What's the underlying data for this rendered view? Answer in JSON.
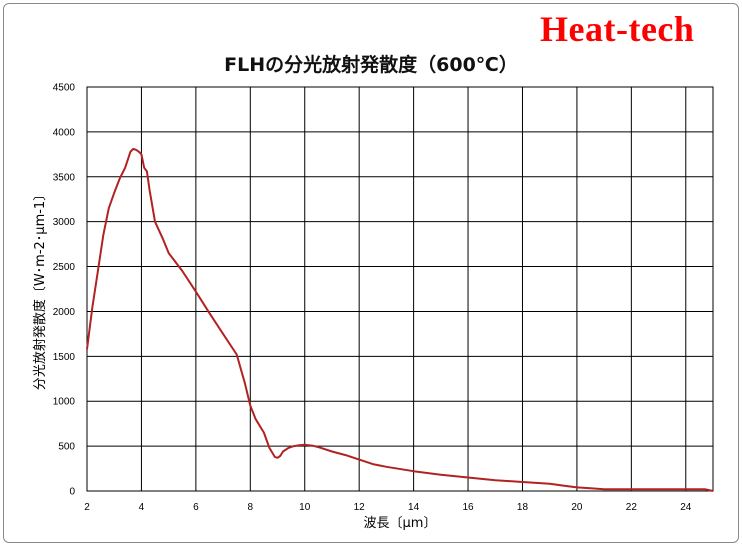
{
  "brand": "Heat-tech",
  "chart_data": {
    "type": "line",
    "title": "FLHの分光放射発散度（600℃）",
    "xlabel": "波長〔μm〕",
    "ylabel": "分光放射発散度〔W･m-2･μm-1〕",
    "xlim": [
      2,
      25
    ],
    "ylim": [
      0,
      4500
    ],
    "xticks": [
      2,
      4,
      6,
      8,
      10,
      12,
      14,
      16,
      18,
      20,
      22,
      24
    ],
    "yticks": [
      0,
      500,
      1000,
      1500,
      2000,
      2500,
      3000,
      3500,
      4000,
      4500
    ],
    "grid": true,
    "legend": "none",
    "line_color": "#b22222",
    "series": [
      {
        "x": [
          2.0,
          2.2,
          2.4,
          2.6,
          2.8,
          3.0,
          3.2,
          3.4,
          3.6,
          3.7,
          3.8,
          3.9,
          4.0,
          4.1,
          4.2,
          4.3,
          4.5,
          4.8,
          5.0,
          5.5,
          6.0,
          6.5,
          7.0,
          7.5,
          7.8,
          8.0,
          8.2,
          8.5,
          8.7,
          8.9,
          9.0,
          9.1,
          9.2,
          9.4,
          9.6,
          9.8,
          10.0,
          10.3,
          10.6,
          11.0,
          11.5,
          12.0,
          12.5,
          13.0,
          14.0,
          15.0,
          16.0,
          17.0,
          18.0,
          19.0,
          19.5,
          20.0,
          20.5,
          21.0,
          22.0,
          23.0,
          24.0,
          24.7,
          25.0
        ],
        "y": [
          1580,
          2050,
          2450,
          2850,
          3150,
          3320,
          3480,
          3600,
          3780,
          3810,
          3800,
          3780,
          3750,
          3600,
          3560,
          3350,
          3000,
          2800,
          2650,
          2450,
          2220,
          1980,
          1750,
          1520,
          1200,
          950,
          800,
          650,
          480,
          380,
          370,
          390,
          440,
          480,
          500,
          510,
          515,
          505,
          480,
          440,
          400,
          350,
          300,
          270,
          220,
          180,
          150,
          120,
          100,
          80,
          60,
          40,
          30,
          20,
          20,
          20,
          20,
          20,
          0
        ]
      }
    ]
  }
}
